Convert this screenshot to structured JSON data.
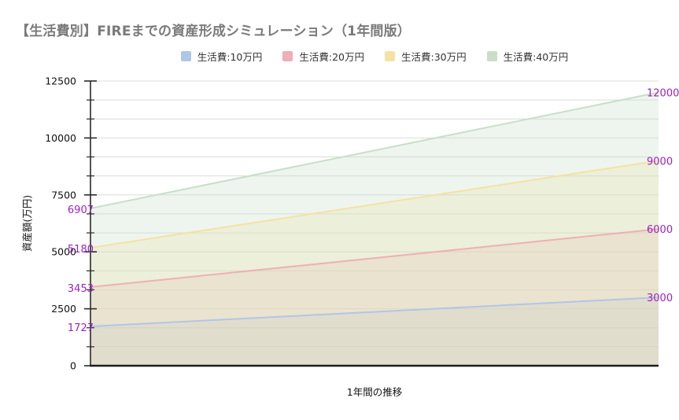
{
  "header": {
    "title": "【生活費別】FIREまでの資産形成シミュレーション（1年間版）",
    "title_color": "#7a7a7a"
  },
  "legend": {
    "position": "top",
    "items": [
      {
        "label": "生活費:10万円",
        "color": "#b0c6e8"
      },
      {
        "label": "生活費:20万円",
        "color": "#eeafb5"
      },
      {
        "label": "生活費:30万円",
        "color": "#f5e2a3"
      },
      {
        "label": "生活費:40万円",
        "color": "#c8dfc6"
      }
    ]
  },
  "chart_data": {
    "type": "area",
    "title": "【生活費別】FIREまでの資産形成シミュレーション（1年間版）",
    "xlabel": "1年間の推移",
    "ylabel": "資産額(万円)",
    "ylim": [
      0,
      12500
    ],
    "y_major_ticks": [
      0,
      2500,
      5000,
      7500,
      10000,
      12500
    ],
    "y_grid_divisions": 15,
    "grid": true,
    "legend_position": "top",
    "series": [
      {
        "name": "生活費:10万円",
        "color": "#b0c6e8",
        "values": [
          1727,
          3000
        ]
      },
      {
        "name": "生活費:20万円",
        "color": "#eeafb5",
        "values": [
          3453,
          6000
        ]
      },
      {
        "name": "生活費:30万円",
        "color": "#f5e2a3",
        "values": [
          5180,
          9000
        ]
      },
      {
        "name": "生活費:40万円",
        "color": "#c8dfc6",
        "values": [
          6907,
          12000
        ]
      }
    ],
    "point_labels": {
      "start": [
        "1727",
        "3453",
        "5180",
        "6907"
      ],
      "end": [
        "3000",
        "6000",
        "9000",
        "12000"
      ],
      "color": "#9b23be"
    },
    "colors": {
      "grid": "#dcdcdc",
      "y_axis": "#2a2a2a",
      "x_axis": "#1c1c1c",
      "tick_label": "#111111",
      "axis_title": "#111111"
    },
    "fill_opacity": 0.3
  }
}
